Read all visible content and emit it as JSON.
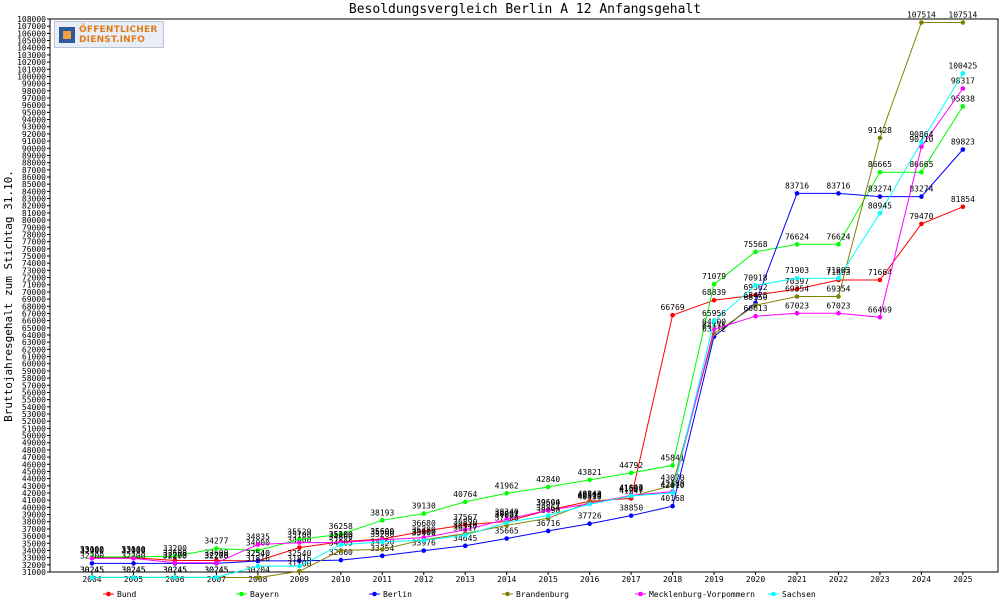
{
  "logo": {
    "line1": "ÖFFENTLICHER",
    "line2": "DIENST.INFO"
  },
  "colors": {
    "Bund": "#ff0000",
    "Bayern": "#00ff00",
    "Berlin": "#0000ff",
    "Brandenburg": "#808000",
    "Mecklenburg-Vorpommern": "#ff00ff",
    "Sachsen": "#00ffff"
  },
  "chart_data": {
    "type": "line",
    "title": "Besoldungsvergleich Berlin A 12 Anfangsgehalt",
    "xlabel": "",
    "ylabel": "Bruttojahresgehalt zum Stichtag 31.10.",
    "ylim": [
      31000,
      108000
    ],
    "ytick_step": 1000,
    "grid": false,
    "legend_position": "bottom",
    "x": [
      "2004",
      "2005",
      "2006",
      "2007",
      "2008",
      "2009",
      "2010",
      "2011",
      "2012",
      "2013",
      "2014",
      "2015",
      "2016",
      "2017",
      "2018",
      "2019",
      "2020",
      "2021",
      "2022",
      "2023",
      "2024",
      "2025"
    ],
    "series": [
      {
        "name": "Bund",
        "values": [
          33000,
          33000,
          32600,
          32600,
          32540,
          34400,
          35200,
          35600,
          36680,
          37567,
          38037,
          39604,
          40843,
          41247,
          66769,
          68839,
          69562,
          70397,
          71663,
          71664,
          79470,
          81854
        ]
      },
      {
        "name": "Bayern",
        "values": [
          33100,
          33100,
          33200,
          34277,
          34000,
          35529,
          36258,
          38193,
          39130,
          40764,
          41962,
          42840,
          43821,
          44792,
          45841,
          71079,
          75568,
          76624,
          76624,
          86665,
          86665,
          95838
        ]
      },
      {
        "name": "Berlin",
        "values": [
          32200,
          32200,
          32200,
          32200,
          32540,
          32540,
          32660,
          33254,
          33976,
          34645,
          35665,
          36716,
          37726,
          38850,
          40168,
          63772,
          68475,
          83716,
          83716,
          83274,
          83274,
          89823
        ]
      },
      {
        "name": "Brandenburg",
        "values": [
          30245,
          30245,
          30245,
          30245,
          30204,
          31100,
          34005,
          34150,
          35500,
          36340,
          37500,
          38490,
          40700,
          41531,
          43070,
          64175,
          68150,
          69354,
          69354,
          91428,
          107514,
          107514
        ]
      },
      {
        "name": "Mecklenburg-Vorpommern",
        "values": [
          32900,
          32900,
          32278,
          32278,
          34835,
          35100,
          35100,
          35500,
          35789,
          36890,
          38340,
          39590,
          40515,
          41667,
          42188,
          64800,
          66613,
          67023,
          67023,
          66469,
          90210,
          98317
        ]
      },
      {
        "name": "Sachsen",
        "values": [
          30245,
          30245,
          30245,
          30245,
          31816,
          31816,
          34800,
          35200,
          35400,
          36117,
          37891,
          38864,
          40430,
          41600,
          42010,
          65956,
          70918,
          71903,
          71903,
          80945,
          90864,
          100425
        ]
      }
    ]
  }
}
